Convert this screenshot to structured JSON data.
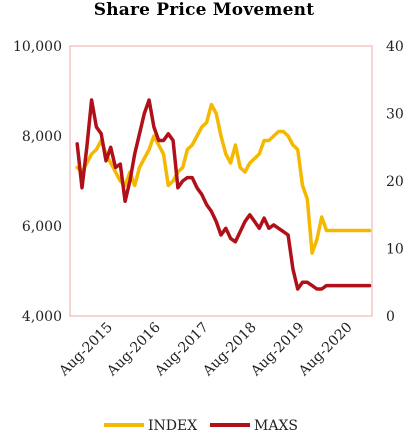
{
  "chart_data": {
    "type": "line",
    "title": "Share Price Movement",
    "x_tick_labels": [
      "Aug-2015",
      "Aug-2016",
      "Aug-2017",
      "Aug-2018",
      "Aug-2019",
      "Aug-2020"
    ],
    "y_left": {
      "ylim": [
        4000,
        10000
      ],
      "ticks": [
        "4,000",
        "6,000",
        "8,000",
        "10,000"
      ]
    },
    "y_right": {
      "ylim": [
        0,
        40
      ],
      "ticks": [
        "0",
        "10",
        "20",
        "30",
        "40"
      ]
    },
    "legend_position": "bottom",
    "grid": false,
    "series": [
      {
        "name": "INDEX",
        "axis": "left",
        "color": "#f5b800",
        "x": [
          2014.9,
          2015.0,
          2015.1,
          2015.2,
          2015.3,
          2015.4,
          2015.5,
          2015.6,
          2015.7,
          2015.8,
          2015.9,
          2016.0,
          2016.1,
          2016.2,
          2016.3,
          2016.4,
          2016.5,
          2016.6,
          2016.7,
          2016.8,
          2016.9,
          2017.0,
          2017.1,
          2017.2,
          2017.3,
          2017.4,
          2017.5,
          2017.6,
          2017.7,
          2017.8,
          2017.9,
          2018.0,
          2018.1,
          2018.2,
          2018.3,
          2018.4,
          2018.5,
          2018.6,
          2018.7,
          2018.8,
          2018.9,
          2019.0,
          2019.1,
          2019.2,
          2019.3,
          2019.4,
          2019.5,
          2019.6,
          2019.7,
          2019.8,
          2019.9,
          2020.0,
          2020.1,
          2020.2,
          2020.3,
          2020.4,
          2020.5,
          2020.6,
          2020.7,
          2020.8,
          2020.9,
          2021.0
        ],
        "values": [
          7300,
          7200,
          7400,
          7600,
          7700,
          7900,
          7600,
          7400,
          7200,
          7000,
          6900,
          7200,
          6900,
          7300,
          7500,
          7700,
          8000,
          7800,
          7600,
          6900,
          7000,
          7200,
          7300,
          7700,
          7800,
          8000,
          8200,
          8300,
          8700,
          8500,
          8000,
          7600,
          7400,
          7800,
          7300,
          7200,
          7400,
          7500,
          7600,
          7900,
          7900,
          8000,
          8100,
          8100,
          8000,
          7800,
          7700,
          6900,
          6600,
          5400,
          5700,
          6200,
          5900,
          5900,
          5900,
          5900,
          5900,
          5900,
          5900,
          5900,
          5900,
          5900
        ]
      },
      {
        "name": "MAXS",
        "axis": "right",
        "color": "#b0101a",
        "x": [
          2014.9,
          2015.0,
          2015.1,
          2015.2,
          2015.3,
          2015.4,
          2015.5,
          2015.6,
          2015.7,
          2015.8,
          2015.9,
          2016.0,
          2016.1,
          2016.2,
          2016.3,
          2016.4,
          2016.5,
          2016.6,
          2016.7,
          2016.8,
          2016.9,
          2017.0,
          2017.1,
          2017.2,
          2017.3,
          2017.4,
          2017.5,
          2017.6,
          2017.7,
          2017.8,
          2017.9,
          2018.0,
          2018.1,
          2018.2,
          2018.3,
          2018.4,
          2018.5,
          2018.6,
          2018.7,
          2018.8,
          2018.9,
          2019.0,
          2019.1,
          2019.2,
          2019.3,
          2019.4,
          2019.5,
          2019.6,
          2019.7,
          2019.8,
          2019.9,
          2020.0,
          2020.1,
          2020.2,
          2020.3,
          2020.4,
          2020.5,
          2020.6,
          2020.7,
          2020.8,
          2020.9,
          2021.0
        ],
        "values": [
          25.5,
          19.0,
          25.0,
          32.0,
          28.0,
          27.0,
          23.0,
          25.0,
          22.0,
          22.5,
          17.0,
          20.0,
          24.0,
          27.0,
          30.0,
          32.0,
          28.0,
          26.0,
          26.0,
          27.0,
          26.0,
          19.0,
          20.0,
          20.5,
          20.5,
          19.0,
          18.0,
          16.5,
          15.5,
          14.0,
          12.0,
          13.0,
          11.5,
          11.0,
          12.5,
          14.0,
          15.0,
          14.0,
          13.0,
          14.5,
          13.0,
          13.5,
          13.0,
          12.5,
          12.0,
          7.0,
          4.0,
          5.0,
          5.0,
          4.5,
          4.0,
          4.0,
          4.5,
          4.5,
          4.5,
          4.5,
          4.5,
          4.5,
          4.5,
          4.5,
          4.5,
          4.5
        ]
      }
    ]
  }
}
